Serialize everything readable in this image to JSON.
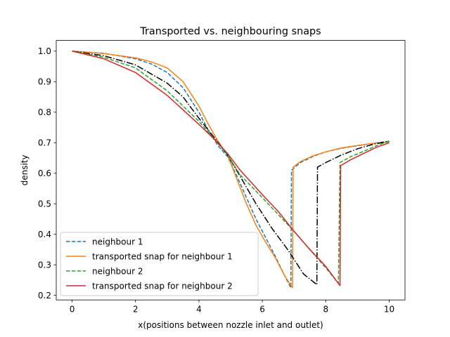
{
  "chart_data": {
    "type": "line",
    "title": "Transported vs. neighbouring snaps",
    "xlabel": "x(positions between nozzle inlet and outlet)",
    "ylabel": "density",
    "xlim": [
      -0.5,
      10.5
    ],
    "ylim": [
      0.185,
      1.035
    ],
    "xticks": [
      0,
      2,
      4,
      6,
      8,
      10
    ],
    "yticks": [
      0.2,
      0.3,
      0.4,
      0.5,
      0.6,
      0.7,
      0.8,
      0.9,
      1.0
    ],
    "xtick_labels": [
      "0",
      "2",
      "4",
      "6",
      "8",
      "10"
    ],
    "ytick_labels": [
      "0.2",
      "0.3",
      "0.4",
      "0.5",
      "0.6",
      "0.7",
      "0.8",
      "0.9",
      "1.0"
    ],
    "grid": false,
    "legend_position": "lower-left",
    "series": [
      {
        "name": "neighbour 1",
        "color": "#1f77b4",
        "dash": "dashed",
        "in_legend": true,
        "points": [
          [
            0,
            1.0
          ],
          [
            1,
            0.993
          ],
          [
            2,
            0.975
          ],
          [
            2.5,
            0.958
          ],
          [
            3,
            0.93
          ],
          [
            3.5,
            0.88
          ],
          [
            4,
            0.8
          ],
          [
            4.3,
            0.74
          ],
          [
            4.6,
            0.69
          ],
          [
            4.9,
            0.655
          ],
          [
            5.2,
            0.59
          ],
          [
            5.5,
            0.52
          ],
          [
            5.8,
            0.45
          ],
          [
            6.1,
            0.39
          ],
          [
            6.4,
            0.33
          ],
          [
            6.7,
            0.265
          ],
          [
            6.9,
            0.225
          ],
          [
            6.92,
            0.61
          ],
          [
            7.2,
            0.635
          ],
          [
            7.6,
            0.655
          ],
          [
            8,
            0.67
          ],
          [
            8.5,
            0.682
          ],
          [
            9,
            0.69
          ],
          [
            9.5,
            0.698
          ],
          [
            10,
            0.705
          ]
        ]
      },
      {
        "name": "transported snap for neighbour 1",
        "color": "#ff7f0e",
        "dash": "solid",
        "in_legend": true,
        "points": [
          [
            0,
            1.0
          ],
          [
            1,
            0.992
          ],
          [
            2,
            0.978
          ],
          [
            2.5,
            0.965
          ],
          [
            3,
            0.945
          ],
          [
            3.5,
            0.9
          ],
          [
            4,
            0.82
          ],
          [
            4.3,
            0.76
          ],
          [
            4.6,
            0.705
          ],
          [
            4.9,
            0.66
          ],
          [
            5.2,
            0.58
          ],
          [
            5.5,
            0.5
          ],
          [
            5.8,
            0.43
          ],
          [
            6.1,
            0.375
          ],
          [
            6.4,
            0.325
          ],
          [
            6.7,
            0.265
          ],
          [
            6.95,
            0.225
          ],
          [
            6.97,
            0.62
          ],
          [
            7.2,
            0.638
          ],
          [
            7.6,
            0.657
          ],
          [
            8,
            0.67
          ],
          [
            8.5,
            0.683
          ],
          [
            9,
            0.691
          ],
          [
            9.5,
            0.698
          ],
          [
            10,
            0.702
          ]
        ]
      },
      {
        "name": "",
        "color": "#000000",
        "dash": "dashdot",
        "in_legend": false,
        "points": [
          [
            0,
            1.0
          ],
          [
            1,
            0.985
          ],
          [
            2,
            0.955
          ],
          [
            3,
            0.895
          ],
          [
            3.5,
            0.85
          ],
          [
            4,
            0.78
          ],
          [
            4.5,
            0.715
          ],
          [
            4.9,
            0.66
          ],
          [
            5.3,
            0.59
          ],
          [
            5.8,
            0.5
          ],
          [
            6.3,
            0.42
          ],
          [
            6.8,
            0.35
          ],
          [
            7.3,
            0.27
          ],
          [
            7.72,
            0.235
          ],
          [
            7.74,
            0.62
          ],
          [
            8,
            0.635
          ],
          [
            8.5,
            0.66
          ],
          [
            9,
            0.68
          ],
          [
            9.5,
            0.695
          ],
          [
            10,
            0.705
          ]
        ]
      },
      {
        "name": "neighbour 2",
        "color": "#2ca02c",
        "dash": "dashed",
        "in_legend": true,
        "points": [
          [
            0,
            1.0
          ],
          [
            1,
            0.98
          ],
          [
            2,
            0.945
          ],
          [
            3,
            0.87
          ],
          [
            4,
            0.77
          ],
          [
            4.5,
            0.71
          ],
          [
            4.9,
            0.66
          ],
          [
            5.3,
            0.595
          ],
          [
            6,
            0.52
          ],
          [
            6.5,
            0.465
          ],
          [
            7,
            0.41
          ],
          [
            7.5,
            0.35
          ],
          [
            8,
            0.29
          ],
          [
            8.4,
            0.24
          ],
          [
            8.45,
            0.635
          ],
          [
            8.8,
            0.655
          ],
          [
            9.2,
            0.672
          ],
          [
            9.6,
            0.69
          ],
          [
            10,
            0.705
          ]
        ]
      },
      {
        "name": "transported snap for neighbour 2",
        "color": "#d62728",
        "dash": "solid",
        "in_legend": true,
        "points": [
          [
            0,
            1.0
          ],
          [
            1,
            0.975
          ],
          [
            2,
            0.93
          ],
          [
            3,
            0.855
          ],
          [
            4,
            0.76
          ],
          [
            4.5,
            0.71
          ],
          [
            4.9,
            0.665
          ],
          [
            5.3,
            0.61
          ],
          [
            6,
            0.53
          ],
          [
            6.5,
            0.475
          ],
          [
            7,
            0.41
          ],
          [
            7.5,
            0.35
          ],
          [
            8,
            0.295
          ],
          [
            8.45,
            0.232
          ],
          [
            8.47,
            0.625
          ],
          [
            8.8,
            0.645
          ],
          [
            9.2,
            0.665
          ],
          [
            9.6,
            0.685
          ],
          [
            10,
            0.7
          ]
        ]
      }
    ]
  }
}
